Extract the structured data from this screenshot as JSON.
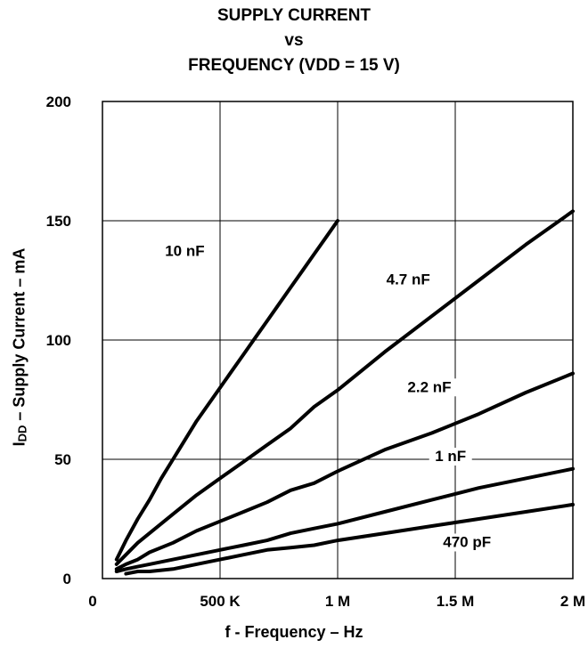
{
  "chart_data": {
    "type": "line",
    "title": [
      "SUPPLY CURRENT",
      "vs",
      "FREQUENCY (VDD = 15 V)"
    ],
    "ylabel": {
      "sym": "I",
      "sub": "DD",
      "rest": " – Supply Current – mA"
    },
    "xlabel": "f - Frequency – Hz",
    "xlim": [
      0,
      2000000
    ],
    "ylim": [
      0,
      200
    ],
    "grid": true,
    "x_ticks": [
      {
        "value": 0,
        "label": "0"
      },
      {
        "value": 500000,
        "label": "500 K"
      },
      {
        "value": 1000000,
        "label": "1 M"
      },
      {
        "value": 1500000,
        "label": "1.5 M"
      },
      {
        "value": 2000000,
        "label": "2 M"
      }
    ],
    "y_ticks": [
      {
        "value": 0,
        "label": "0"
      },
      {
        "value": 50,
        "label": "50"
      },
      {
        "value": 100,
        "label": "100"
      },
      {
        "value": 150,
        "label": "150"
      },
      {
        "value": 200,
        "label": "200"
      }
    ],
    "series": [
      {
        "name": "10 nF",
        "x": [
          60000,
          100000,
          150000,
          200000,
          250000,
          300000,
          350000,
          400000,
          450000,
          500000,
          550000,
          600000,
          650000,
          700000,
          750000,
          800000,
          850000,
          900000,
          950000,
          1000000
        ],
        "y": [
          8,
          16,
          25,
          33,
          42,
          50,
          58,
          66,
          73,
          80,
          87,
          94,
          101,
          108,
          115,
          122,
          129,
          136,
          143,
          150
        ]
      },
      {
        "name": "4.7 nF",
        "x": [
          60000,
          100000,
          150000,
          200000,
          300000,
          400000,
          500000,
          600000,
          700000,
          800000,
          900000,
          1000000,
          1200000,
          1400000,
          1600000,
          1800000,
          2000000
        ],
        "y": [
          6,
          10,
          15,
          19,
          27,
          35,
          42,
          49,
          56,
          63,
          72,
          79,
          95,
          110,
          125,
          140,
          154
        ]
      },
      {
        "name": "2.2 nF",
        "x": [
          60000,
          100000,
          150000,
          200000,
          300000,
          400000,
          500000,
          600000,
          700000,
          800000,
          900000,
          1000000,
          1200000,
          1400000,
          1600000,
          1800000,
          2000000
        ],
        "y": [
          4,
          6,
          8,
          11,
          15,
          20,
          24,
          28,
          32,
          37,
          40,
          45,
          54,
          61,
          69,
          78,
          86
        ]
      },
      {
        "name": "1 nF",
        "x": [
          60000,
          100000,
          150000,
          200000,
          300000,
          400000,
          500000,
          600000,
          700000,
          800000,
          900000,
          1000000,
          1200000,
          1400000,
          1600000,
          1800000,
          2000000
        ],
        "y": [
          3,
          4,
          5,
          6,
          8,
          10,
          12,
          14,
          16,
          19,
          21,
          23,
          28,
          33,
          38,
          42,
          46
        ]
      },
      {
        "name": "470 pF",
        "x": [
          100000,
          150000,
          200000,
          300000,
          400000,
          500000,
          600000,
          700000,
          800000,
          900000,
          1000000,
          1200000,
          1400000,
          1600000,
          1800000,
          2000000
        ],
        "y": [
          2,
          3,
          3,
          4,
          6,
          8,
          10,
          12,
          13,
          14,
          16,
          19,
          22,
          25,
          28,
          31
        ]
      }
    ],
    "annotations": [
      {
        "text": "10 nF",
        "x": 350000,
        "y": 136
      },
      {
        "text": "4.7 nF",
        "x": 1300000,
        "y": 124
      },
      {
        "text": "2.2 nF",
        "x": 1390000,
        "y": 79
      },
      {
        "text": "1 nF",
        "x": 1480000,
        "y": 50
      },
      {
        "text": "470 pF",
        "x": 1550000,
        "y": 14
      }
    ]
  }
}
